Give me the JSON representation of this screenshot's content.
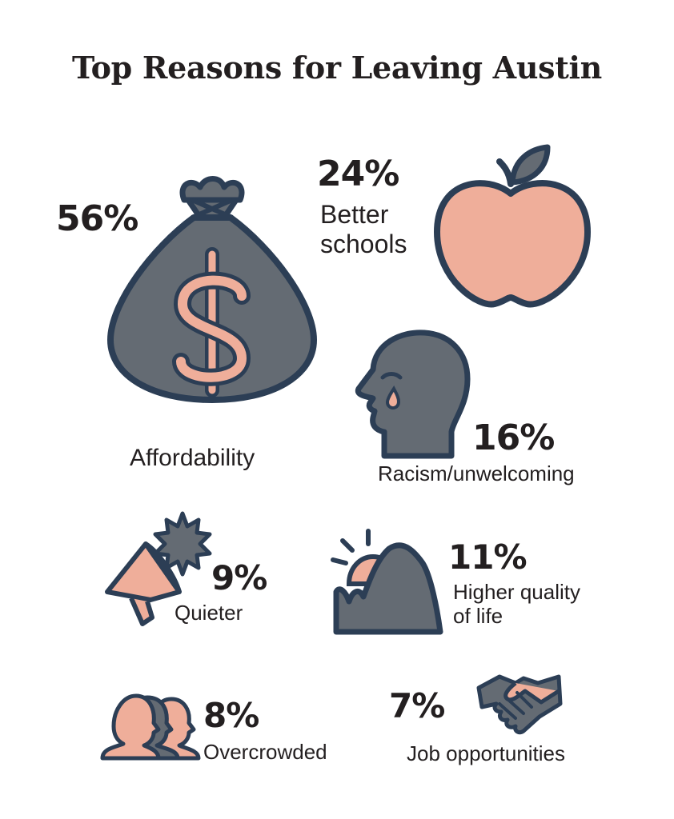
{
  "title": "Top Reasons for Leaving Austin",
  "colors": {
    "slate": "#646b73",
    "outline": "#2c3e55",
    "salmon": "#efae9a",
    "text": "#231f20"
  },
  "items": [
    {
      "key": "affordability",
      "percent": "56%",
      "label": "Affordability",
      "icon": "money-bag-icon"
    },
    {
      "key": "schools",
      "percent": "24%",
      "label_line1": "Better",
      "label_line2": "schools",
      "icon": "apple-icon"
    },
    {
      "key": "racism",
      "percent": "16%",
      "label": "Racism/unwelcoming",
      "icon": "crying-head-icon"
    },
    {
      "key": "quieter",
      "percent": "9%",
      "label": "Quieter",
      "icon": "megaphone-icon"
    },
    {
      "key": "quality",
      "percent": "11%",
      "label_line1": "Higher quality",
      "label_line2": "of life",
      "icon": "sunrise-mountain-icon"
    },
    {
      "key": "crowded",
      "percent": "8%",
      "label": "Overcrowded",
      "icon": "crowd-icon"
    },
    {
      "key": "jobs",
      "percent": "7%",
      "label": "Job opportunities",
      "icon": "handshake-icon"
    }
  ]
}
